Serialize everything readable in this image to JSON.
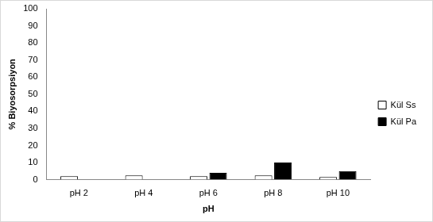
{
  "chart_data": {
    "type": "bar",
    "categories": [
      "pH 2",
      "pH 4",
      "pH 6",
      "pH 8",
      "pH 10"
    ],
    "series": [
      {
        "name": "Kül Ss",
        "color": "#ffffff",
        "values": [
          2,
          2.5,
          2,
          2.5,
          1.5
        ]
      },
      {
        "name": "Kül Pa",
        "color": "#000000",
        "values": [
          0,
          0,
          4,
          10,
          5
        ]
      }
    ],
    "x_label": "pH",
    "y_label": "% Biyosorpsiyon",
    "ylim": [
      0,
      100
    ],
    "yticks": [
      0,
      10,
      20,
      30,
      40,
      50,
      60,
      70,
      80,
      90,
      100
    ],
    "grid": false,
    "legend": "right"
  }
}
